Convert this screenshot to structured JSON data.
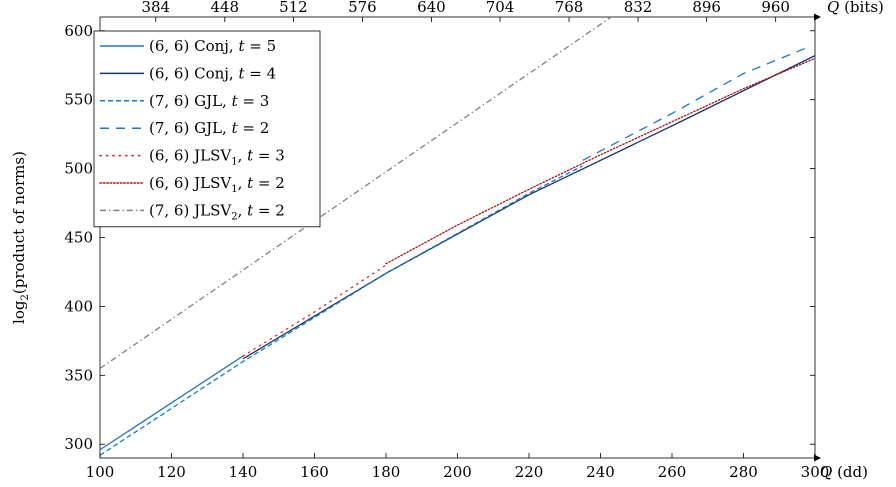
{
  "chart_data": {
    "type": "line",
    "title": "",
    "xlabel": "Q (dd)",
    "xlabel_var": "Q",
    "xlabel_unit": "(dd)",
    "ylabel": "log2(product of norms)",
    "ylabel_fn": "log",
    "ylabel_sub": "2",
    "ylabel_rest": "(product of norms)",
    "x2label": "Q (bits)",
    "x2label_var": "Q",
    "x2label_unit": "(bits)",
    "xlim": [
      100,
      300
    ],
    "ylim": [
      290,
      610
    ],
    "x_ticks": [
      100,
      120,
      140,
      160,
      180,
      200,
      220,
      240,
      260,
      280,
      300
    ],
    "y_ticks": [
      300,
      350,
      400,
      450,
      500,
      550,
      600
    ],
    "x2_ticks": [
      {
        "at_dd": 115.6,
        "label": "384"
      },
      {
        "at_dd": 134.9,
        "label": "448"
      },
      {
        "at_dd": 154.1,
        "label": "512"
      },
      {
        "at_dd": 173.4,
        "label": "576"
      },
      {
        "at_dd": 192.7,
        "label": "640"
      },
      {
        "at_dd": 211.9,
        "label": "704"
      },
      {
        "at_dd": 231.2,
        "label": "768"
      },
      {
        "at_dd": 250.5,
        "label": "832"
      },
      {
        "at_dd": 269.7,
        "label": "896"
      },
      {
        "at_dd": 289.0,
        "label": "960"
      }
    ],
    "grid": false,
    "legend_position": "top-left",
    "series": [
      {
        "name": "(6,6) Conj, t = 5",
        "label_main": "(6, 6) Conj, ",
        "label_var": "t",
        "label_rest": " = 5",
        "color": "#1f77c8",
        "style": "solid",
        "x": [
          100,
          140
        ],
        "y": [
          296,
          364
        ]
      },
      {
        "name": "(6,6) Conj, t = 4",
        "label_main": "(6, 6) Conj, ",
        "label_var": "t",
        "label_rest": " = 4",
        "color": "#14386e",
        "style": "solid",
        "x": [
          140,
          180,
          220,
          260,
          300
        ],
        "y": [
          362,
          424,
          481,
          531,
          582
        ]
      },
      {
        "name": "(7,6) GJL, t = 3",
        "label_main": "(7, 6) GJL, ",
        "label_var": "t",
        "label_rest": " = 3",
        "color": "#1f77c8",
        "style": "dashed-short",
        "x": [
          100,
          140,
          180,
          220,
          235
        ],
        "y": [
          292,
          360,
          424,
          482,
          502
        ]
      },
      {
        "name": "(7,6) GJL, t = 2",
        "label_main": "(7, 6) GJL, ",
        "label_var": "t",
        "label_rest": " = 2",
        "color": "#1f77c8",
        "style": "dashed-long",
        "x": [
          235,
          260,
          280,
          298
        ],
        "y": [
          506,
          540,
          569,
          588
        ]
      },
      {
        "name": "(6,6) JLSV1, t = 3",
        "label_main": "(6, 6) JLSV",
        "label_sub": "1",
        "label_var": "t",
        "label_rest": " = 3",
        "color": "#d62728",
        "style": "dotted-sparse",
        "x": [
          140,
          160,
          180
        ],
        "y": [
          364,
          396,
          430
        ]
      },
      {
        "name": "(6,6) JLSV1, t = 2",
        "label_main": "(6, 6) JLSV",
        "label_sub": "1",
        "label_var": "t",
        "label_rest": " = 2",
        "color": "#b01010",
        "style": "dotted-dense",
        "x": [
          180,
          200,
          220,
          240,
          260,
          280,
          300
        ],
        "y": [
          431,
          459,
          485,
          510,
          534,
          558,
          580
        ]
      },
      {
        "name": "(7,6) JLSV2, t = 2",
        "label_main": "(7, 6) JLSV",
        "label_sub": "2",
        "label_var": "t",
        "label_rest": " = 2",
        "color": "#808080",
        "style": "dashdot",
        "x": [
          100,
          243
        ],
        "y": [
          355,
          610
        ]
      }
    ]
  }
}
